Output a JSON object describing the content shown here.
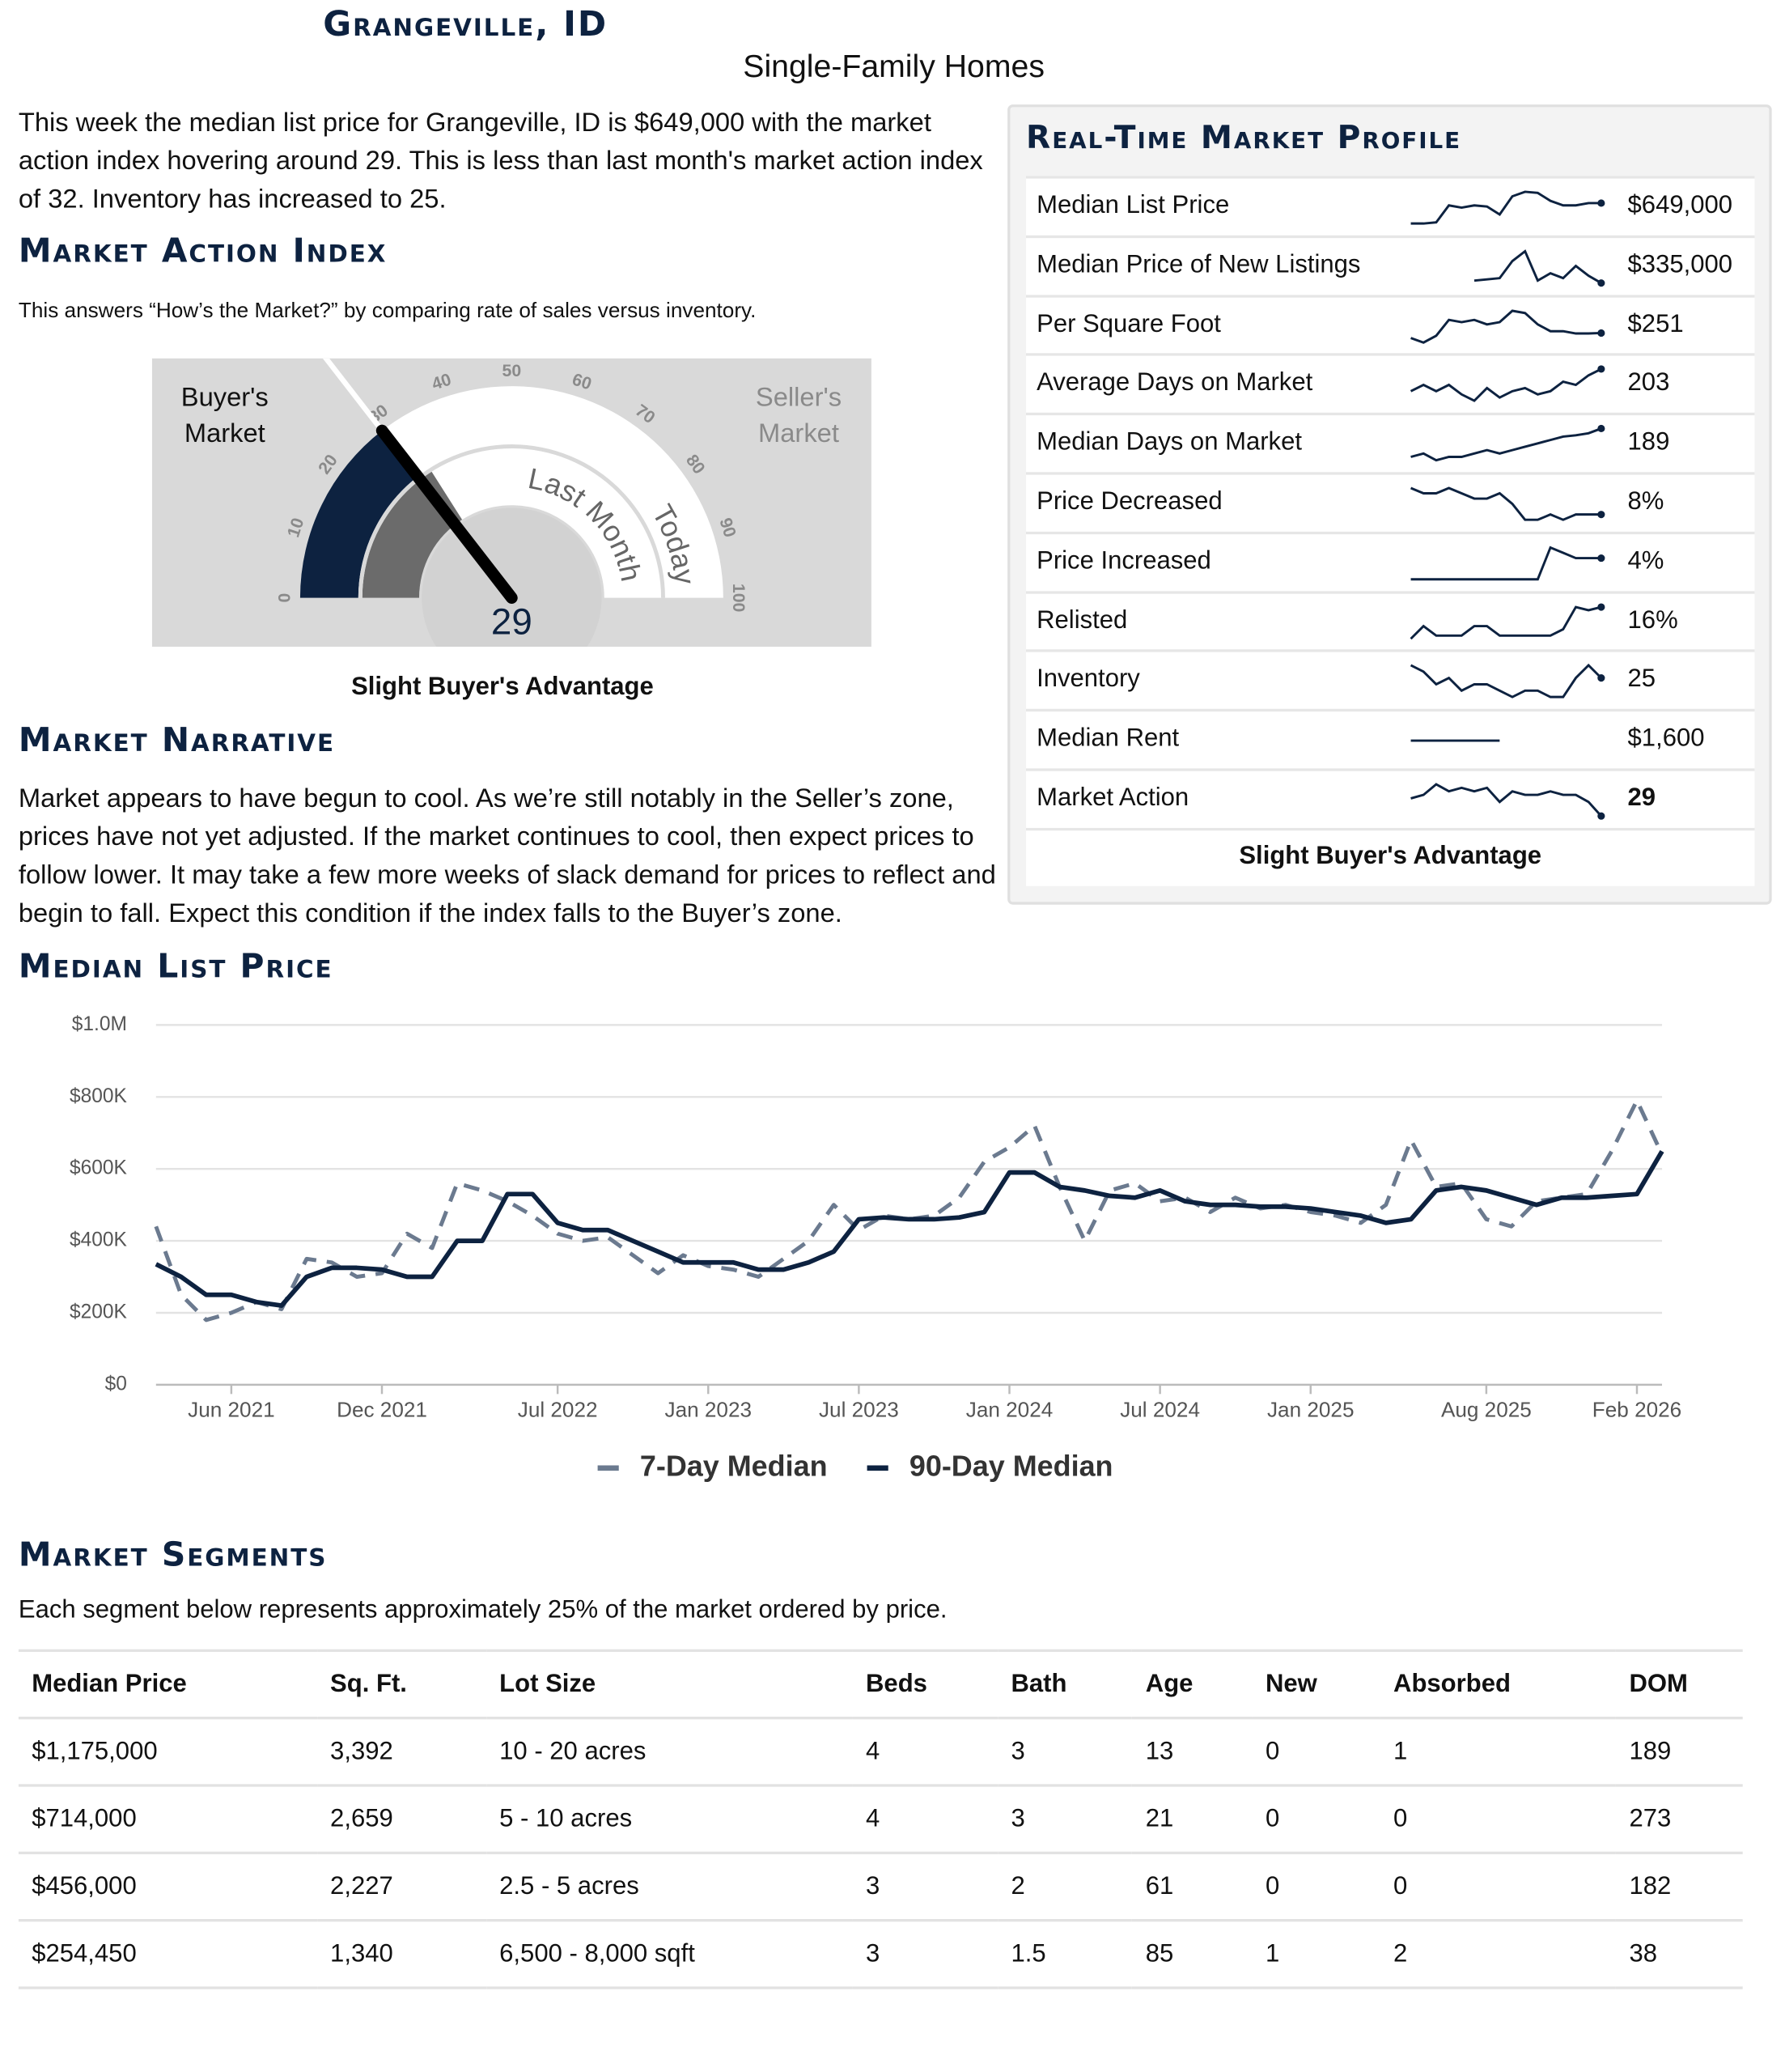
{
  "header": {
    "title": "Grangeville, ID",
    "subtitle": "Single-Family Homes"
  },
  "intro": "This week the median list price for Grangeville, ID is $649,000 with the market action index hovering around 29. This is less than last month's market action index of 32. Inventory has increased to 25.",
  "market_action_index": {
    "heading": "Market Action Index",
    "description": "This answers “How’s the Market?” by comparing rate of sales versus inventory.",
    "gauge": {
      "value": 29,
      "last_month": 32,
      "ticks": [
        0,
        10,
        20,
        30,
        40,
        50,
        60,
        70,
        80,
        90,
        100
      ],
      "buyers_label": "Buyer's Market",
      "sellers_label": "Seller's Market",
      "last_month_label": "Last Month",
      "today_label": "Today"
    },
    "caption": "Slight Buyer's Advantage"
  },
  "market_narrative": {
    "heading": "Market Narrative",
    "text": "Market appears to have begun to cool. As we’re still notably in the Seller’s zone, prices have not yet adjusted. If the market continues to cool, then expect prices to follow lower. It may take a few more weeks of slack demand for prices to reflect and begin to fall. Expect this condition if the index falls to the Buyer’s zone."
  },
  "market_profile": {
    "heading": "Real-Time Market Profile",
    "rows": [
      {
        "label": "Median List Price",
        "value": "$649,000",
        "trend": [
          520000,
          520000,
          525000,
          600000,
          590000,
          600000,
          595000,
          560000,
          640000,
          660000,
          655000,
          620000,
          600000,
          600000,
          610000,
          610000
        ]
      },
      {
        "label": "Median Price of New Listings",
        "value": "$335,000",
        "trend": [
          null,
          null,
          null,
          null,
          null,
          300000,
          305000,
          310000,
          380000,
          420000,
          300000,
          330000,
          310000,
          360000,
          320000,
          290000
        ]
      },
      {
        "label": "Per Square Foot",
        "value": "$251",
        "trend": [
          240,
          230,
          245,
          280,
          275,
          280,
          270,
          275,
          300,
          295,
          270,
          255,
          255,
          250,
          250,
          251
        ]
      },
      {
        "label": "Average Days on Market",
        "value": "203",
        "trend": [
          185,
          195,
          185,
          195,
          180,
          170,
          190,
          175,
          185,
          190,
          180,
          185,
          200,
          195,
          210,
          220
        ]
      },
      {
        "label": "Median Days on Market",
        "value": "189",
        "trend": [
          150,
          155,
          145,
          150,
          150,
          155,
          160,
          155,
          160,
          165,
          170,
          175,
          180,
          182,
          185,
          192
        ]
      },
      {
        "label": "Price Decreased",
        "value": "8%",
        "trend": [
          12,
          11,
          11,
          12,
          11,
          10,
          10,
          11,
          9,
          6,
          6,
          7,
          6,
          7,
          7,
          7
        ]
      },
      {
        "label": "Price Increased",
        "value": "4%",
        "trend": [
          0,
          0,
          0,
          0,
          0,
          0,
          0,
          0,
          0,
          0,
          0,
          6,
          5,
          4,
          4,
          4
        ]
      },
      {
        "label": "Relisted",
        "value": "16%",
        "trend": [
          8,
          12,
          9,
          9,
          9,
          12,
          12,
          9,
          9,
          9,
          9,
          9,
          11,
          18,
          17,
          18
        ]
      },
      {
        "label": "Inventory",
        "value": "25",
        "trend": [
          30,
          29,
          27,
          28,
          26,
          27,
          27,
          26,
          25,
          26,
          26,
          25,
          25,
          28,
          30,
          28
        ]
      },
      {
        "label": "Median Rent",
        "value": "$1,600",
        "trend": [
          1600,
          1600,
          1600,
          1600,
          1600,
          1600,
          1600,
          1600
        ]
      },
      {
        "label": "Market Action",
        "value": "29",
        "trend": [
          34,
          35,
          38,
          36,
          37,
          36,
          37,
          33,
          36,
          35,
          35,
          36,
          35,
          35,
          33,
          29
        ]
      }
    ],
    "footer": "Slight Buyer's Advantage"
  },
  "median_list_price": {
    "heading": "Median List Price"
  },
  "chart_data": {
    "type": "line",
    "x": [
      "2021-03",
      "2021-04",
      "2021-05",
      "2021-06",
      "2021-07",
      "2021-08",
      "2021-09",
      "2021-10",
      "2021-11",
      "2021-12",
      "2022-01",
      "2022-02",
      "2022-03",
      "2022-04",
      "2022-05",
      "2022-06",
      "2022-07",
      "2022-08",
      "2022-09",
      "2022-10",
      "2022-11",
      "2022-12",
      "2023-01",
      "2023-02",
      "2023-03",
      "2023-04",
      "2023-05",
      "2023-06",
      "2023-07",
      "2023-08",
      "2023-09",
      "2023-10",
      "2023-11",
      "2023-12",
      "2024-01",
      "2024-02",
      "2024-03",
      "2024-04",
      "2024-05",
      "2024-06",
      "2024-07",
      "2024-08",
      "2024-09",
      "2024-10",
      "2024-11",
      "2024-12",
      "2025-01",
      "2025-02",
      "2025-03",
      "2025-04",
      "2025-05",
      "2025-06",
      "2025-07",
      "2025-08",
      "2025-09",
      "2025-10",
      "2025-11",
      "2025-12",
      "2026-01",
      "2026-02",
      "2026-03"
    ],
    "series": [
      {
        "name": "7-Day Median",
        "color": "#6b7a8f",
        "dashed": true,
        "values": [
          440000,
          250000,
          180000,
          200000,
          230000,
          210000,
          350000,
          340000,
          300000,
          310000,
          420000,
          380000,
          560000,
          540000,
          510000,
          470000,
          420000,
          400000,
          410000,
          360000,
          310000,
          360000,
          330000,
          320000,
          300000,
          350000,
          400000,
          500000,
          430000,
          470000,
          460000,
          470000,
          520000,
          620000,
          660000,
          720000,
          550000,
          400000,
          540000,
          560000,
          510000,
          520000,
          480000,
          520000,
          490000,
          500000,
          480000,
          470000,
          450000,
          500000,
          680000,
          550000,
          560000,
          460000,
          440000,
          510000,
          520000,
          530000,
          650000,
          790000,
          640000
        ]
      },
      {
        "name": "90-Day Median",
        "color": "#0d2240",
        "values": [
          335000,
          300000,
          250000,
          250000,
          230000,
          220000,
          300000,
          325000,
          325000,
          320000,
          300000,
          300000,
          400000,
          400000,
          530000,
          530000,
          450000,
          430000,
          430000,
          400000,
          370000,
          340000,
          340000,
          340000,
          320000,
          320000,
          340000,
          370000,
          460000,
          465000,
          460000,
          460000,
          465000,
          480000,
          590000,
          590000,
          550000,
          540000,
          525000,
          520000,
          540000,
          510000,
          500000,
          500000,
          495000,
          495000,
          490000,
          480000,
          470000,
          450000,
          460000,
          540000,
          550000,
          540000,
          520000,
          500000,
          520000,
          520000,
          525000,
          530000,
          649000
        ]
      }
    ],
    "xlim": [
      "2021-03",
      "2026-03"
    ],
    "xticks": [
      {
        "value": "2021-06",
        "label": "Jun 2021"
      },
      {
        "value": "2021-12",
        "label": "Dec 2021"
      },
      {
        "value": "2022-07",
        "label": "Jul 2022"
      },
      {
        "value": "2023-01",
        "label": "Jan 2023"
      },
      {
        "value": "2023-07",
        "label": "Jul 2023"
      },
      {
        "value": "2024-01",
        "label": "Jan 2024"
      },
      {
        "value": "2024-07",
        "label": "Jul 2024"
      },
      {
        "value": "2025-01",
        "label": "Jan 2025"
      },
      {
        "value": "2025-08",
        "label": "Aug 2025"
      },
      {
        "value": "2026-02",
        "label": "Feb 2026"
      }
    ],
    "ylim": [
      0,
      1000000
    ],
    "yticks": [
      {
        "value": 0,
        "label": "$0"
      },
      {
        "value": 200000,
        "label": "$200K"
      },
      {
        "value": 400000,
        "label": "$400K"
      },
      {
        "value": 600000,
        "label": "$600K"
      },
      {
        "value": 800000,
        "label": "$800K"
      },
      {
        "value": 1000000,
        "label": "$1.0M"
      }
    ],
    "grid": true,
    "legend": "bottom"
  },
  "market_segments": {
    "heading": "Market Segments",
    "description": "Each segment below represents approximately 25% of the market ordered by price.",
    "columns": [
      "Median Price",
      "Sq. Ft.",
      "Lot Size",
      "Beds",
      "Bath",
      "Age",
      "New",
      "Absorbed",
      "DOM"
    ],
    "rows": [
      [
        "$1,175,000",
        "3,392",
        "10 - 20 acres",
        "4",
        "3",
        "13",
        "0",
        "1",
        "189"
      ],
      [
        "$714,000",
        "2,659",
        "5 - 10 acres",
        "4",
        "3",
        "21",
        "0",
        "0",
        "273"
      ],
      [
        "$456,000",
        "2,227",
        "2.5 - 5 acres",
        "3",
        "2",
        "61",
        "0",
        "0",
        "182"
      ],
      [
        "$254,450",
        "1,340",
        "6,500 - 8,000 sqft",
        "3",
        "1.5",
        "85",
        "1",
        "2",
        "38"
      ]
    ]
  }
}
